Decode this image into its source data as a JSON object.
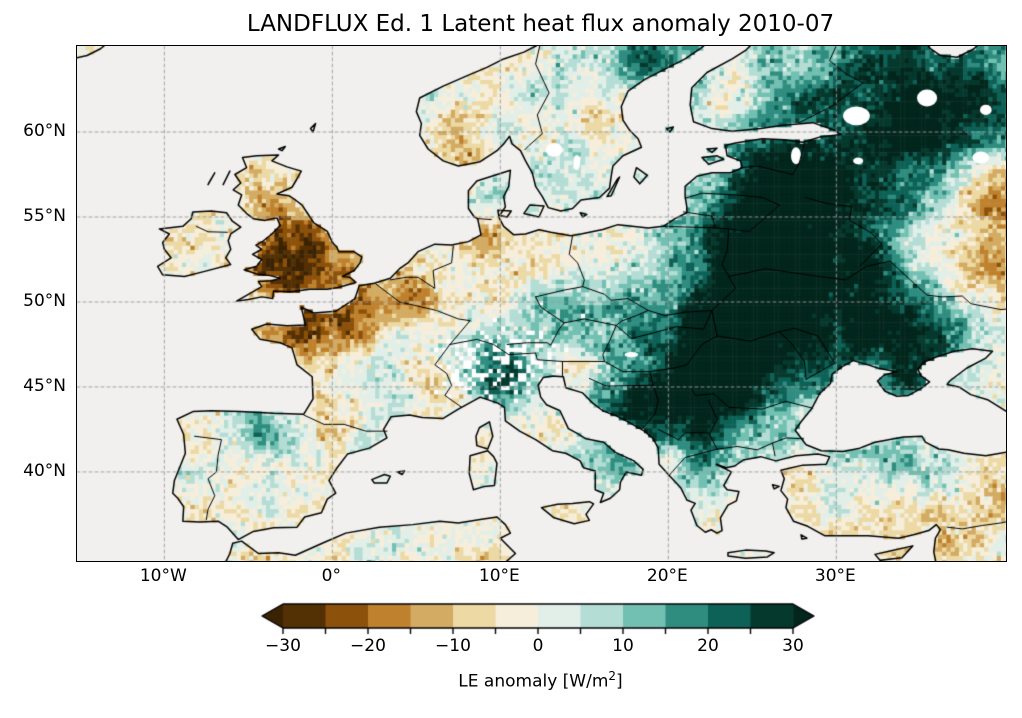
{
  "title": "LANDFLUX Ed. 1 Latent heat flux anomaly 2010-07",
  "axes": {
    "x_ticks": [
      {
        "label": "10°W",
        "lon": -10
      },
      {
        "label": "0°",
        "lon": 0
      },
      {
        "label": "10°E",
        "lon": 10
      },
      {
        "label": "20°E",
        "lon": 20
      },
      {
        "label": "30°E",
        "lon": 30
      }
    ],
    "y_ticks": [
      {
        "label": "60°N",
        "lat": 60
      },
      {
        "label": "55°N",
        "lat": 55
      },
      {
        "label": "50°N",
        "lat": 50
      },
      {
        "label": "45°N",
        "lat": 45
      },
      {
        "label": "40°N",
        "lat": 40
      }
    ]
  },
  "colorbar": {
    "label_prefix": "LE anomaly [W/m",
    "label_sup": "2",
    "label_suffix": "]",
    "tick_labels": [
      "−30",
      "−20",
      "−10",
      "0",
      "10",
      "20",
      "30"
    ],
    "tick_values": [
      -30,
      -20,
      -10,
      0,
      10,
      20,
      30
    ],
    "boundary_step": 5,
    "vmin": -30,
    "vmax": 30,
    "segment_colors": [
      "#543005",
      "#8c510a",
      "#bf812d",
      "#d3ab62",
      "#ecd9a4",
      "#f6eedb",
      "#e2efe9",
      "#b4ddd5",
      "#72c0b2",
      "#2f8d80",
      "#0d6156",
      "#06392e"
    ],
    "under_color": "#3a2303",
    "over_color": "#02261c"
  },
  "chart_data": {
    "type": "heatmap",
    "title": "LANDFLUX Ed. 1 Latent heat flux anomaly 2010-07",
    "units": "W/m²",
    "colorbar_label": "LE anomaly [W/m²]",
    "projection": "equirectangular",
    "extent": {
      "lon_min": -15.2,
      "lon_max": 40.1,
      "lat_min": 34.76,
      "lat_max": 65.06
    },
    "resolution_deg": 0.25,
    "levels": [
      -30,
      -25,
      -20,
      -15,
      -10,
      -5,
      0,
      5,
      10,
      15,
      20,
      25,
      30
    ],
    "grid": true,
    "gridline_style": "dashed",
    "ocean_color": "#f1f0ef",
    "nodata_color": "#ffffff",
    "coastline_color": "#000000",
    "anomaly_regions": [
      {
        "name": "east-europe-surplus",
        "lon": 30.5,
        "lat": 54.5,
        "radius_deg": 7,
        "anomaly_wm2": 24
      },
      {
        "name": "nw-russia-surplus",
        "lon": 36,
        "lat": 61.5,
        "radius_deg": 5,
        "anomaly_wm2": 22
      },
      {
        "name": "uk-france-deficit",
        "lon": 0,
        "lat": 50.5,
        "radius_deg": 4,
        "anomaly_wm2": -12
      },
      {
        "name": "east-russia-deficit",
        "lon": 37,
        "lat": 53,
        "radius_deg": 3.5,
        "anomaly_wm2": -30
      },
      {
        "name": "moscow-area-deficit",
        "lon": 40,
        "lat": 56.3,
        "radius_deg": 1.5,
        "anomaly_wm2": -25
      },
      {
        "name": "carpathian-surplus",
        "lon": 21,
        "lat": 46.5,
        "radius_deg": 4,
        "anomaly_wm2": 14
      },
      {
        "name": "anatolia-deficit",
        "lon": 32.5,
        "lat": 38.5,
        "radius_deg": 5,
        "anomaly_wm2": -5
      },
      {
        "name": "iberia-mild-surplus",
        "lon": -4,
        "lat": 39.5,
        "radius_deg": 4,
        "anomaly_wm2": 3
      },
      {
        "name": "england-deficit",
        "lon": -1.5,
        "lat": 52.3,
        "radius_deg": 1.6,
        "anomaly_wm2": -10
      },
      {
        "name": "wales-deficit",
        "lon": -3.8,
        "lat": 52.2,
        "radius_deg": 1,
        "anomaly_wm2": -10
      },
      {
        "name": "north-england-deficit",
        "lon": -1.8,
        "lat": 53.8,
        "radius_deg": 1.3,
        "anomaly_wm2": -8
      },
      {
        "name": "scotland-mild-deficit",
        "lon": -4,
        "lat": 57,
        "radius_deg": 1.5,
        "anomaly_wm2": -5
      },
      {
        "name": "ireland-mild-deficit",
        "lon": -8,
        "lat": 53.2,
        "radius_deg": 2,
        "anomaly_wm2": -3
      },
      {
        "name": "normandy-deficit",
        "lon": 0.4,
        "lat": 48.8,
        "radius_deg": 1.8,
        "anomaly_wm2": -14
      },
      {
        "name": "brittany-deficit",
        "lon": -2.8,
        "lat": 48.2,
        "radius_deg": 1.2,
        "anomaly_wm2": -10
      },
      {
        "name": "massif-central-surplus",
        "lon": 2.6,
        "lat": 45.9,
        "radius_deg": 1.7,
        "anomaly_wm2": 16
      },
      {
        "name": "belgium-deficit",
        "lon": 4.4,
        "lat": 50.4,
        "radius_deg": 1,
        "anomaly_wm2": -8
      },
      {
        "name": "nw-germany-deficit",
        "lon": 9.2,
        "lat": 52.8,
        "radius_deg": 1.5,
        "anomaly_wm2": -9
      },
      {
        "name": "austria-czech-surplus",
        "lon": 14.5,
        "lat": 48.6,
        "radius_deg": 1.8,
        "anomaly_wm2": 10
      },
      {
        "name": "alps-surplus",
        "lon": 10,
        "lat": 46.6,
        "radius_deg": 1.6,
        "anomaly_wm2": 14
      },
      {
        "name": "slovenia-deficit",
        "lon": 14.4,
        "lat": 46.1,
        "radius_deg": 0.8,
        "anomaly_wm2": -14
      },
      {
        "name": "romania-surplus",
        "lon": 24,
        "lat": 46.8,
        "radius_deg": 2.5,
        "anomaly_wm2": 18
      },
      {
        "name": "serbia-surplus",
        "lon": 21,
        "lat": 44.3,
        "radius_deg": 2,
        "anomaly_wm2": 18
      },
      {
        "name": "west-ukraine-surplus",
        "lon": 26,
        "lat": 50,
        "radius_deg": 3,
        "anomaly_wm2": 18
      },
      {
        "name": "east-ukraine-surplus",
        "lon": 33,
        "lat": 49.5,
        "radius_deg": 3,
        "anomaly_wm2": 20
      },
      {
        "name": "south-ukraine-surplus",
        "lon": 35.5,
        "lat": 47,
        "radius_deg": 2,
        "anomaly_wm2": 16
      },
      {
        "name": "crimea-surplus",
        "lon": 34.3,
        "lat": 45.1,
        "radius_deg": 0.9,
        "anomaly_wm2": 10
      },
      {
        "name": "baltics-surplus",
        "lon": 25.5,
        "lat": 54.5,
        "radius_deg": 2.5,
        "anomaly_wm2": 16
      },
      {
        "name": "latvia-estonia-surplus",
        "lon": 27,
        "lat": 57,
        "radius_deg": 2,
        "anomaly_wm2": 14
      },
      {
        "name": "central-poland-deficit",
        "lon": 19.5,
        "lat": 52.3,
        "radius_deg": 1.6,
        "anomaly_wm2": -10
      },
      {
        "name": "south-norway-deficit",
        "lon": 7.5,
        "lat": 59.8,
        "radius_deg": 1.4,
        "anomaly_wm2": -14
      },
      {
        "name": "north-sweden-surplus",
        "lon": 19,
        "lat": 64.8,
        "radius_deg": 2.2,
        "anomaly_wm2": 18
      },
      {
        "name": "mid-sweden-deficit",
        "lon": 15.5,
        "lat": 61,
        "radius_deg": 1.4,
        "anomaly_wm2": -6
      },
      {
        "name": "sw-finland-deficit",
        "lon": 23.3,
        "lat": 61.8,
        "radius_deg": 1.3,
        "anomaly_wm2": -16
      },
      {
        "name": "north-spain-surplus",
        "lon": -4.5,
        "lat": 42.9,
        "radius_deg": 1.3,
        "anomaly_wm2": 14
      },
      {
        "name": "pyrenees-deficit",
        "lon": 0.3,
        "lat": 42.4,
        "radius_deg": 0.9,
        "anomaly_wm2": -12
      },
      {
        "name": "catalonia-surplus",
        "lon": 1.9,
        "lat": 41.9,
        "radius_deg": 0.8,
        "anomaly_wm2": 14
      },
      {
        "name": "po-valley-surplus",
        "lon": 9.6,
        "lat": 45.3,
        "radius_deg": 1.1,
        "anomaly_wm2": 10
      },
      {
        "name": "apennines-deficit",
        "lon": 13.6,
        "lat": 42.4,
        "radius_deg": 0.9,
        "anomaly_wm2": -8
      },
      {
        "name": "south-italy-surplus",
        "lon": 16.5,
        "lat": 40.8,
        "radius_deg": 1.2,
        "anomaly_wm2": 10
      },
      {
        "name": "sicily-neutral",
        "lon": 13.5,
        "lat": 37.4,
        "radius_deg": 1.2,
        "anomaly_wm2": -3
      },
      {
        "name": "north-greece-surplus",
        "lon": 21.9,
        "lat": 40.3,
        "radius_deg": 1.2,
        "anomaly_wm2": 12
      },
      {
        "name": "albania-deficit",
        "lon": 20.3,
        "lat": 41.3,
        "radius_deg": 0.7,
        "anomaly_wm2": -10
      },
      {
        "name": "bosnia-surplus",
        "lon": 18,
        "lat": 43.2,
        "radius_deg": 1.5,
        "anomaly_wm2": 14
      },
      {
        "name": "north-turkey-surplus",
        "lon": 32.5,
        "lat": 41.3,
        "radius_deg": 1.5,
        "anomaly_wm2": 12
      },
      {
        "name": "ne-turkey-surplus",
        "lon": 36,
        "lat": 40.3,
        "radius_deg": 1.5,
        "anomaly_wm2": 8
      },
      {
        "name": "east-turkey-deficit",
        "lon": 39.8,
        "lat": 39.3,
        "radius_deg": 1.5,
        "anomaly_wm2": -12
      },
      {
        "name": "se-turkey-deficit",
        "lon": 37.8,
        "lat": 36.6,
        "radius_deg": 1.2,
        "anomaly_wm2": -8
      },
      {
        "name": "syria-deficit",
        "lon": 36.6,
        "lat": 35,
        "radius_deg": 1.5,
        "anomaly_wm2": -6
      },
      {
        "name": "denmark-surplus",
        "lon": 9.8,
        "lat": 56.2,
        "radius_deg": 1,
        "anomaly_wm2": 10
      },
      {
        "name": "tunisia-deficit",
        "lon": 9.5,
        "lat": 35.5,
        "radius_deg": 2,
        "anomaly_wm2": -5
      },
      {
        "name": "morocco-neutral",
        "lon": -4,
        "lat": 34.8,
        "radius_deg": 3,
        "anomaly_wm2": -4
      },
      {
        "name": "iceland-edge-neutral",
        "lon": -14.5,
        "lat": 64.8,
        "radius_deg": 1.2,
        "anomaly_wm2": -4
      }
    ]
  }
}
